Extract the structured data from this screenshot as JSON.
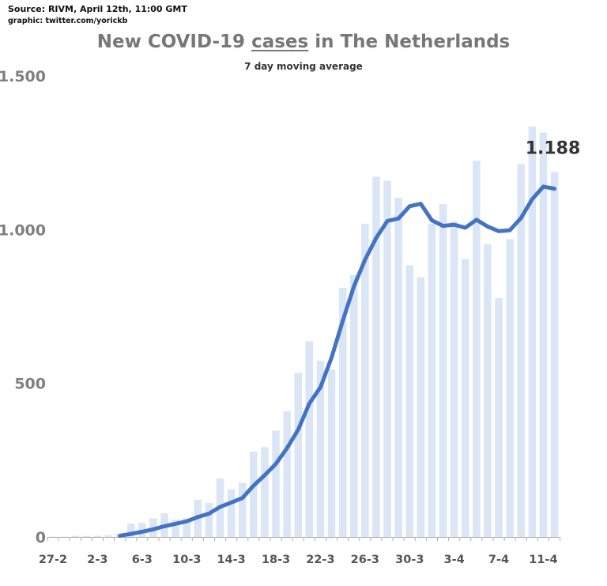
{
  "header": {
    "source": "Source: RIVM, April 12th, 11:00 GMT",
    "credit": "graphic: twitter.com/yorickb",
    "title_before": "New COVID-19 ",
    "title_underlined": "cases",
    "title_after": " in The Netherlands",
    "subtitle": "7 day moving average"
  },
  "colors": {
    "bars": "#dae5f5",
    "line": "#4472c4",
    "axis": "#b0b0b0"
  },
  "chart_data": {
    "type": "bar",
    "title": "New COVID-19 cases in The Netherlands",
    "subtitle": "7 day moving average",
    "xlabel": "",
    "ylabel": "",
    "ylim": [
      0,
      1500
    ],
    "yticks": [
      0,
      500,
      1000,
      1500
    ],
    "ytick_labels": [
      "0",
      "500",
      "1.000",
      "1.500"
    ],
    "xtick_labels": [
      "27-2",
      "2-3",
      "6-3",
      "10-3",
      "14-3",
      "18-3",
      "22-3",
      "26-3",
      "30-3",
      "3-4",
      "7-4",
      "11-4"
    ],
    "xtick_index": [
      0,
      4,
      8,
      12,
      16,
      20,
      24,
      28,
      32,
      36,
      40,
      44
    ],
    "grid": false,
    "legend": "none",
    "categories": [
      "27-2",
      "28-2",
      "29-2",
      "1-3",
      "2-3",
      "3-3",
      "4-3",
      "5-3",
      "6-3",
      "7-3",
      "8-3",
      "9-3",
      "10-3",
      "11-3",
      "12-3",
      "13-3",
      "14-3",
      "15-3",
      "16-3",
      "17-3",
      "18-3",
      "19-3",
      "20-3",
      "21-3",
      "22-3",
      "23-3",
      "24-3",
      "25-3",
      "26-3",
      "27-3",
      "28-3",
      "29-3",
      "30-3",
      "31-3",
      "1-4",
      "2-4",
      "3-4",
      "4-4",
      "5-4",
      "6-4",
      "7-4",
      "8-4",
      "9-4",
      "10-4",
      "11-4",
      "12-4"
    ],
    "series": [
      {
        "name": "daily new cases",
        "type": "bar",
        "values": [
          1,
          1,
          4,
          3,
          4,
          6,
          10,
          44,
          46,
          60,
          77,
          56,
          61,
          121,
          111,
          190,
          155,
          176,
          278,
          292,
          346,
          409,
          534,
          637,
          573,
          545,
          811,
          852,
          1019,
          1172,
          1159,
          1104,
          884,
          845,
          1019,
          1083,
          1026,
          904,
          1224,
          952,
          777,
          969,
          1213,
          1335,
          1316,
          1188
        ]
      },
      {
        "name": "7 day moving average",
        "type": "line",
        "values": [
          null,
          null,
          null,
          null,
          null,
          null,
          4,
          10,
          17,
          25,
          35,
          43,
          51,
          65,
          76,
          98,
          112,
          127,
          167,
          201,
          238,
          289,
          349,
          434,
          487,
          584,
          703,
          815,
          902,
          973,
          1028,
          1036,
          1076,
          1084,
          1030,
          1012,
          1016,
          1006,
          1032,
          1010,
          995,
          998,
          1038,
          1099,
          1140,
          1133
        ]
      }
    ],
    "data_label": "1.188"
  }
}
